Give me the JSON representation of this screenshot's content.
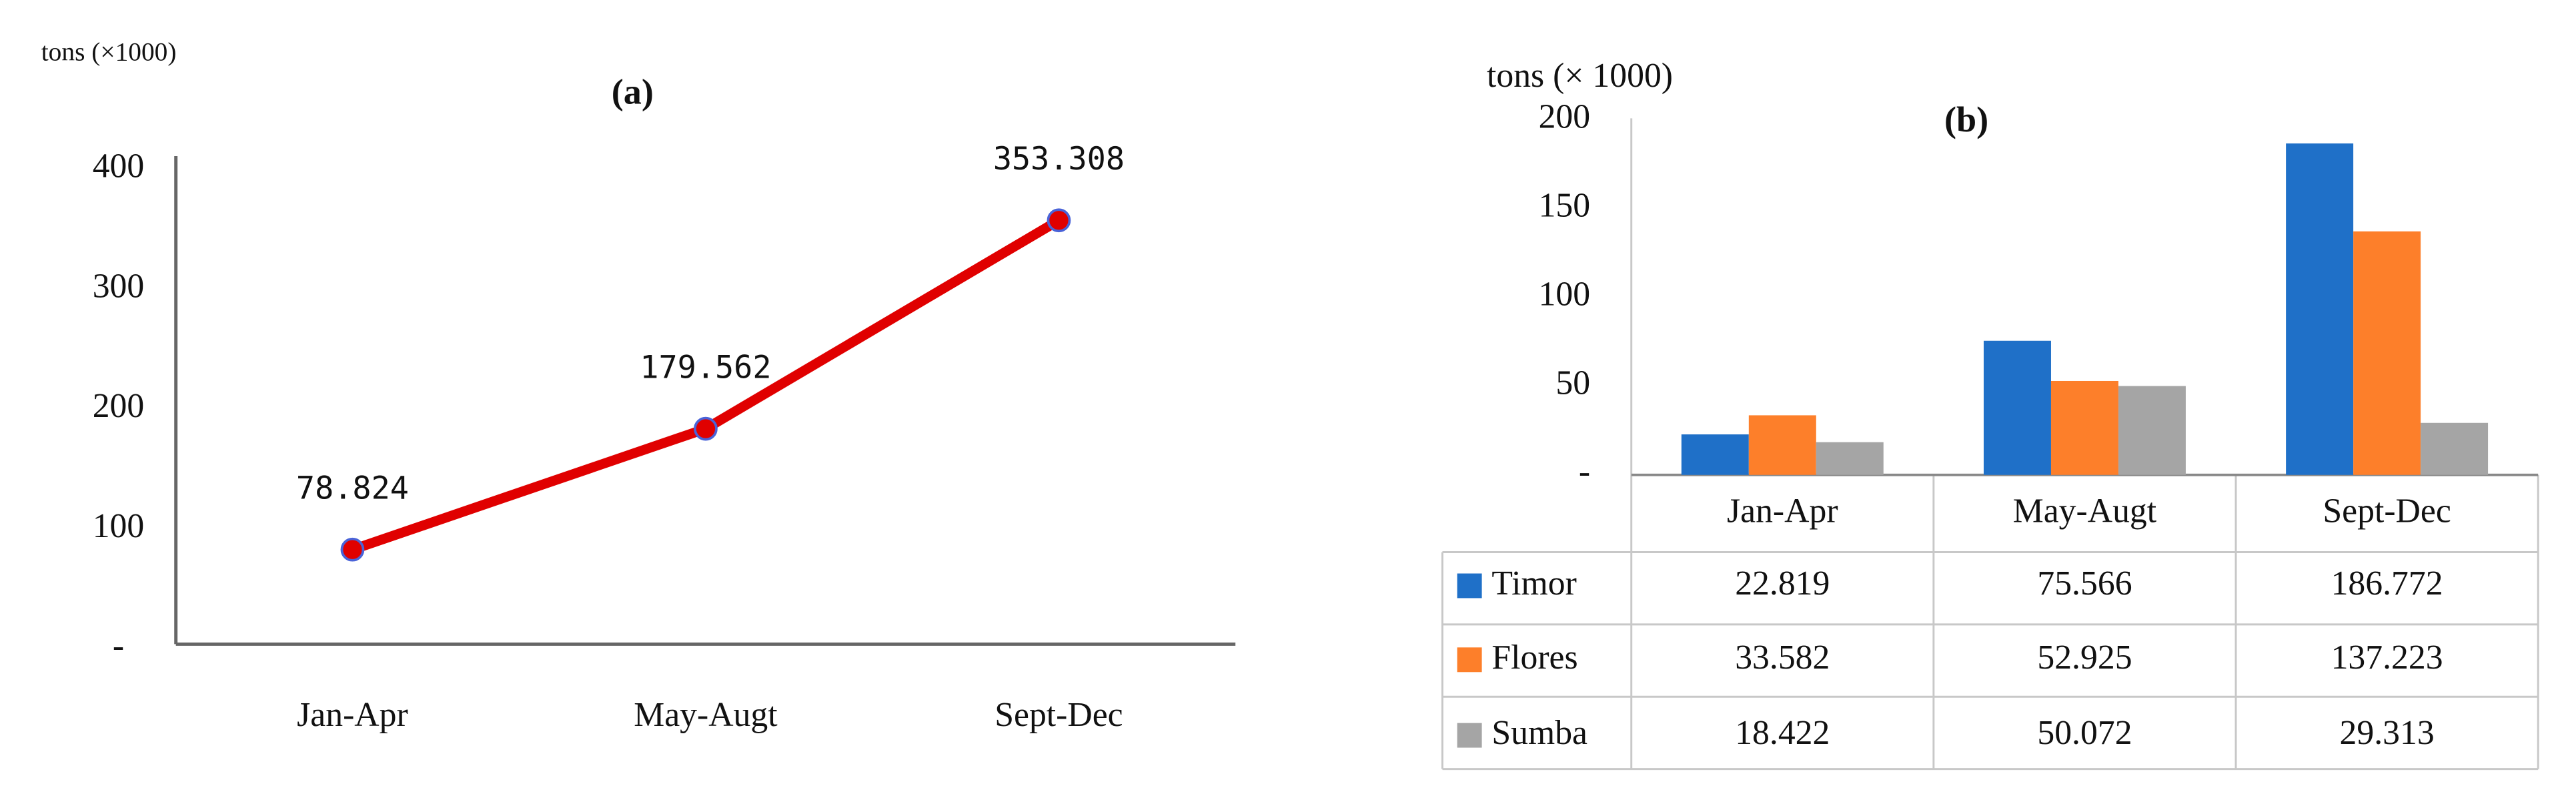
{
  "chart_data": [
    {
      "type": "line",
      "title": "(a)",
      "y_label": "tons (×1000)",
      "categories": [
        "Jan-Apr",
        "May-Augt",
        "Sept-Dec"
      ],
      "values": [
        78.824,
        179.562,
        353.308
      ],
      "color": "#e00000",
      "marker_edge_color": "#4a63d8",
      "ylim": [
        0,
        400
      ],
      "yticks": [
        {
          "value": 0,
          "label": "-"
        },
        100,
        200,
        300,
        400
      ],
      "grid": false
    },
    {
      "type": "bar",
      "title": "(b)",
      "y_label": "tons (× 1000)",
      "categories": [
        "Jan-Apr",
        "May-Augt",
        "Sept-Dec"
      ],
      "series": [
        {
          "name": "Timor",
          "color": "#1f70c8",
          "values": [
            22.819,
            75.566,
            186.772
          ]
        },
        {
          "name": "Flores",
          "color": "#fd7f2a",
          "values": [
            33.582,
            52.925,
            137.223
          ]
        },
        {
          "name": "Sumba",
          "color": "#a5a5a5",
          "values": [
            18.422,
            50.072,
            29.313
          ]
        }
      ],
      "ylim": [
        0,
        200
      ],
      "yticks": [
        {
          "value": 0,
          "label": "-"
        },
        50,
        100,
        150,
        200
      ],
      "grid": false,
      "data_table": true
    }
  ]
}
